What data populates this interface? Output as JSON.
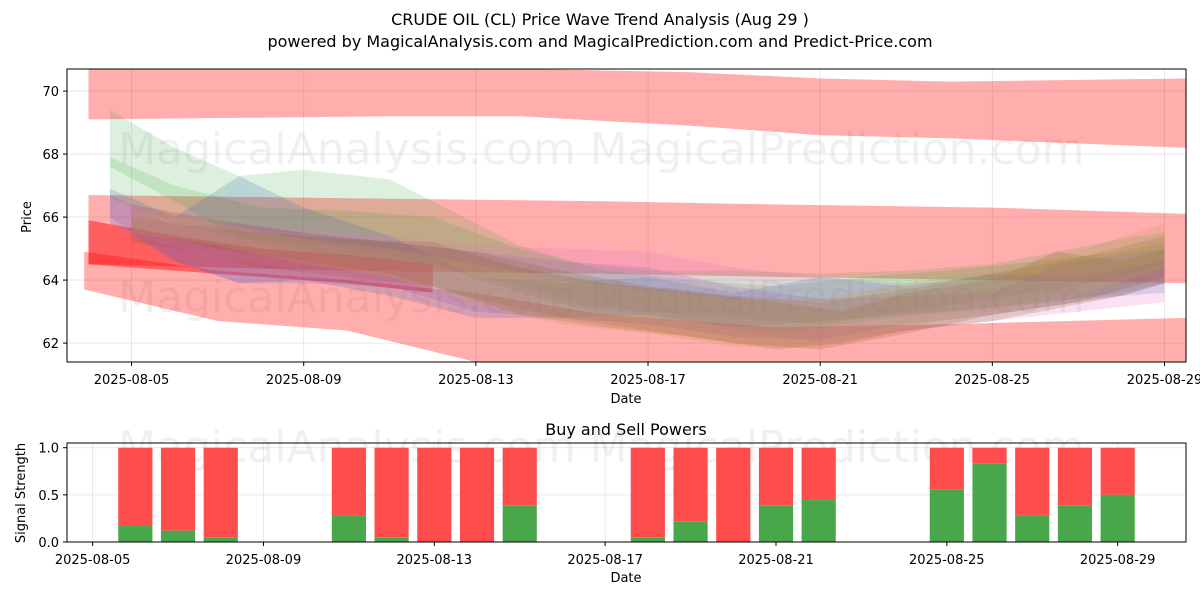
{
  "chart_data": [
    {
      "type": "area",
      "title": "CRUDE OIL (CL) Price Wave Trend Analysis (Aug 29 )",
      "subtitle": "powered by MagicalAnalysis.com and MagicalPrediction.com and Predict-Price.com",
      "xlabel": "Date",
      "ylabel": "Price",
      "xlim": [
        -0.5,
        25.5
      ],
      "ylim": [
        61.4,
        70.7
      ],
      "x_ticks": [
        {
          "x": 1,
          "label": "2025-08-05"
        },
        {
          "x": 5,
          "label": "2025-08-09"
        },
        {
          "x": 9,
          "label": "2025-08-13"
        },
        {
          "x": 13,
          "label": "2025-08-17"
        },
        {
          "x": 17,
          "label": "2025-08-21"
        },
        {
          "x": 21,
          "label": "2025-08-25"
        },
        {
          "x": 25,
          "label": "2025-08-29"
        }
      ],
      "y_ticks": [
        62,
        64,
        66,
        68,
        70
      ],
      "grid": true,
      "watermarks": [
        "MagicalAnalysis.com",
        "MagicalPrediction.com",
        "MagicalAnalysis.com",
        "MagicalPrediction.com"
      ],
      "bands": [
        {
          "name": "red-top",
          "color": "#ff0000",
          "opacity": 0.32,
          "x": [
            0,
            7,
            10,
            14,
            17,
            20,
            25.5
          ],
          "upper": [
            70.8,
            70.8,
            70.7,
            70.6,
            70.4,
            70.3,
            70.4
          ],
          "lower": [
            69.1,
            69.2,
            69.2,
            68.9,
            68.6,
            68.5,
            68.2
          ]
        },
        {
          "name": "red-middle",
          "color": "#ff0000",
          "opacity": 0.32,
          "x": [
            0,
            6,
            12,
            16,
            21,
            25.5
          ],
          "upper": [
            66.7,
            66.6,
            66.5,
            66.4,
            66.3,
            66.1
          ],
          "lower": [
            64.5,
            64.3,
            64.2,
            64.1,
            64.0,
            63.9
          ]
        },
        {
          "name": "red-lower",
          "color": "#ff0000",
          "opacity": 0.32,
          "x": [
            -0.1,
            3,
            6,
            9,
            12,
            16,
            20,
            25.5
          ],
          "upper": [
            64.9,
            64.3,
            64.0,
            63.6,
            62.9,
            62.5,
            62.6,
            62.8
          ],
          "lower": [
            63.7,
            62.7,
            62.4,
            61.4,
            61.2,
            61.3,
            61.3,
            61.4
          ]
        },
        {
          "name": "red-short",
          "color": "#ff0000",
          "opacity": 0.45,
          "x": [
            0,
            2,
            4,
            6,
            8
          ],
          "upper": [
            65.9,
            65.4,
            65.0,
            64.8,
            64.5
          ],
          "lower": [
            64.5,
            64.3,
            64.1,
            63.9,
            63.6
          ]
        },
        {
          "name": "green-a",
          "color": "#2ca02c",
          "opacity": 0.16,
          "x": [
            0.5,
            2,
            3.5,
            5,
            7,
            10,
            11.5,
            13,
            15,
            17,
            19,
            21,
            22.5,
            24,
            25
          ],
          "upper": [
            69.4,
            68.2,
            67.3,
            67.5,
            67.2,
            65.1,
            64.5,
            64.3,
            64.3,
            64.2,
            64.3,
            64.5,
            64.9,
            65.3,
            65.5
          ],
          "lower": [
            67.6,
            66.5,
            65.3,
            65.2,
            64.8,
            63.8,
            63.2,
            63.0,
            62.8,
            62.6,
            63.0,
            63.4,
            63.7,
            64.1,
            64.5
          ]
        },
        {
          "name": "green-b",
          "color": "#2ca02c",
          "opacity": 0.16,
          "x": [
            0.5,
            2,
            4,
            6,
            8,
            10,
            12,
            14,
            16,
            18,
            20,
            22,
            24,
            25
          ],
          "upper": [
            67.9,
            67.0,
            66.3,
            66.2,
            66.0,
            65.0,
            64.3,
            64.0,
            63.8,
            64.1,
            64.3,
            64.6,
            64.9,
            65.2
          ],
          "lower": [
            66.6,
            65.8,
            65.2,
            64.7,
            64.5,
            63.6,
            62.9,
            62.7,
            62.3,
            62.7,
            63.0,
            63.3,
            63.6,
            63.9
          ]
        },
        {
          "name": "blue-a",
          "color": "#1f5fbf",
          "opacity": 0.18,
          "x": [
            0.5,
            2,
            3.5,
            5,
            7,
            9,
            11,
            13,
            15,
            17,
            19,
            21,
            23,
            25
          ],
          "upper": [
            66.9,
            66.0,
            67.3,
            66.3,
            65.4,
            64.1,
            63.9,
            64.1,
            63.6,
            64.1,
            63.8,
            64.2,
            64.1,
            64.6
          ],
          "lower": [
            66.0,
            64.6,
            63.9,
            64.0,
            63.5,
            62.8,
            62.8,
            62.9,
            62.5,
            62.7,
            62.9,
            63.1,
            63.4,
            63.6
          ]
        },
        {
          "name": "purple-a",
          "color": "#9467bd",
          "opacity": 0.24,
          "x": [
            0.5,
            2,
            3.5,
            5,
            7,
            9,
            11,
            13,
            15,
            17,
            19,
            21,
            22.5,
            24,
            25
          ],
          "upper": [
            66.7,
            65.7,
            65.8,
            65.5,
            65.2,
            64.9,
            64.6,
            64.4,
            63.8,
            63.4,
            63.5,
            63.6,
            64.5,
            64.8,
            65.0
          ],
          "lower": [
            65.8,
            64.6,
            63.9,
            63.9,
            63.8,
            63.0,
            62.8,
            62.6,
            62.2,
            62.1,
            62.6,
            62.9,
            63.2,
            63.5,
            63.9
          ]
        },
        {
          "name": "pink-a",
          "color": "#e377c2",
          "opacity": 0.22,
          "x": [
            1,
            3,
            5,
            7,
            9,
            11,
            13,
            15,
            17,
            19,
            21,
            23,
            25
          ],
          "upper": [
            66.4,
            65.8,
            65.6,
            65.4,
            65.1,
            65.0,
            64.9,
            64.4,
            64.1,
            63.9,
            64.0,
            64.2,
            64.5
          ],
          "lower": [
            65.4,
            64.7,
            64.3,
            63.9,
            63.6,
            63.2,
            62.9,
            62.4,
            62.0,
            62.4,
            62.7,
            63.0,
            63.3
          ]
        },
        {
          "name": "brown-a",
          "color": "#8c5a2b",
          "opacity": 0.2,
          "x": [
            1,
            2.5,
            4,
            6,
            8,
            10,
            12,
            14,
            16,
            17.5,
            19,
            21,
            22.5,
            24,
            25
          ],
          "upper": [
            66.0,
            65.7,
            65.5,
            65.3,
            65.2,
            64.4,
            63.9,
            63.6,
            63.3,
            63.0,
            63.6,
            64.0,
            64.9,
            64.6,
            65.0
          ],
          "lower": [
            65.2,
            64.9,
            64.4,
            64.1,
            63.8,
            62.9,
            62.5,
            62.2,
            61.8,
            62.0,
            62.4,
            62.7,
            63.1,
            63.5,
            63.9
          ]
        },
        {
          "name": "brown-b",
          "color": "#8c5a2b",
          "opacity": 0.2,
          "x": [
            1,
            3,
            5,
            7,
            9,
            11,
            13,
            15,
            17,
            19,
            21,
            23,
            25
          ],
          "upper": [
            66.4,
            65.9,
            65.5,
            65.2,
            64.9,
            64.3,
            63.8,
            63.5,
            63.3,
            63.7,
            64.2,
            64.7,
            65.4
          ],
          "lower": [
            65.6,
            65.0,
            64.6,
            64.2,
            63.4,
            62.8,
            62.4,
            62.0,
            61.8,
            62.3,
            62.9,
            63.3,
            64.1
          ]
        },
        {
          "name": "tan-a",
          "color": "#c8a060",
          "opacity": 0.24,
          "x": [
            1,
            3,
            5,
            7,
            9,
            11,
            13,
            15,
            17,
            19,
            21,
            23,
            25
          ],
          "upper": [
            66.2,
            65.8,
            65.3,
            65.0,
            64.5,
            64.0,
            63.7,
            63.4,
            63.4,
            63.9,
            64.3,
            64.9,
            65.8
          ],
          "lower": [
            65.5,
            65.1,
            64.5,
            64.1,
            63.2,
            62.6,
            62.3,
            61.9,
            61.9,
            62.5,
            63.0,
            63.5,
            64.4
          ]
        }
      ]
    },
    {
      "type": "bar",
      "title": "Buy and Sell Powers",
      "xlabel": "Date",
      "ylabel": "Signal Strength",
      "xlim": [
        -0.6,
        25.6
      ],
      "ylim": [
        0,
        1.05
      ],
      "y_ticks": [
        0.0,
        0.5,
        1.0
      ],
      "y_tick_labels": [
        "0.0",
        "0.5",
        "1.0"
      ],
      "x_ticks": [
        {
          "x": 0,
          "label": "2025-08-05"
        },
        {
          "x": 4,
          "label": "2025-08-09"
        },
        {
          "x": 8,
          "label": "2025-08-13"
        },
        {
          "x": 12,
          "label": "2025-08-17"
        },
        {
          "x": 16,
          "label": "2025-08-21"
        },
        {
          "x": 20,
          "label": "2025-08-25"
        },
        {
          "x": 24,
          "label": "2025-08-29"
        }
      ],
      "grid": true,
      "buy_color": "#4aa64a",
      "sell_color": "#ff4c4c",
      "watermarks": [
        "MagicalAnalysis.com",
        "MagicalPrediction.com"
      ],
      "bars": [
        {
          "x": 1,
          "buy": 0.17
        },
        {
          "x": 2,
          "buy": 0.12
        },
        {
          "x": 3,
          "buy": 0.05
        },
        {
          "x": 6,
          "buy": 0.28
        },
        {
          "x": 7,
          "buy": 0.05
        },
        {
          "x": 8,
          "buy": 0.0
        },
        {
          "x": 9,
          "buy": 0.0
        },
        {
          "x": 10,
          "buy": 0.39
        },
        {
          "x": 13,
          "buy": 0.05
        },
        {
          "x": 14,
          "buy": 0.22
        },
        {
          "x": 15,
          "buy": 0.0
        },
        {
          "x": 16,
          "buy": 0.39
        },
        {
          "x": 17,
          "buy": 0.45
        },
        {
          "x": 20,
          "buy": 0.56
        },
        {
          "x": 21,
          "buy": 0.83
        },
        {
          "x": 22,
          "buy": 0.28
        },
        {
          "x": 23,
          "buy": 0.39
        },
        {
          "x": 24,
          "buy": 0.5
        }
      ]
    }
  ]
}
